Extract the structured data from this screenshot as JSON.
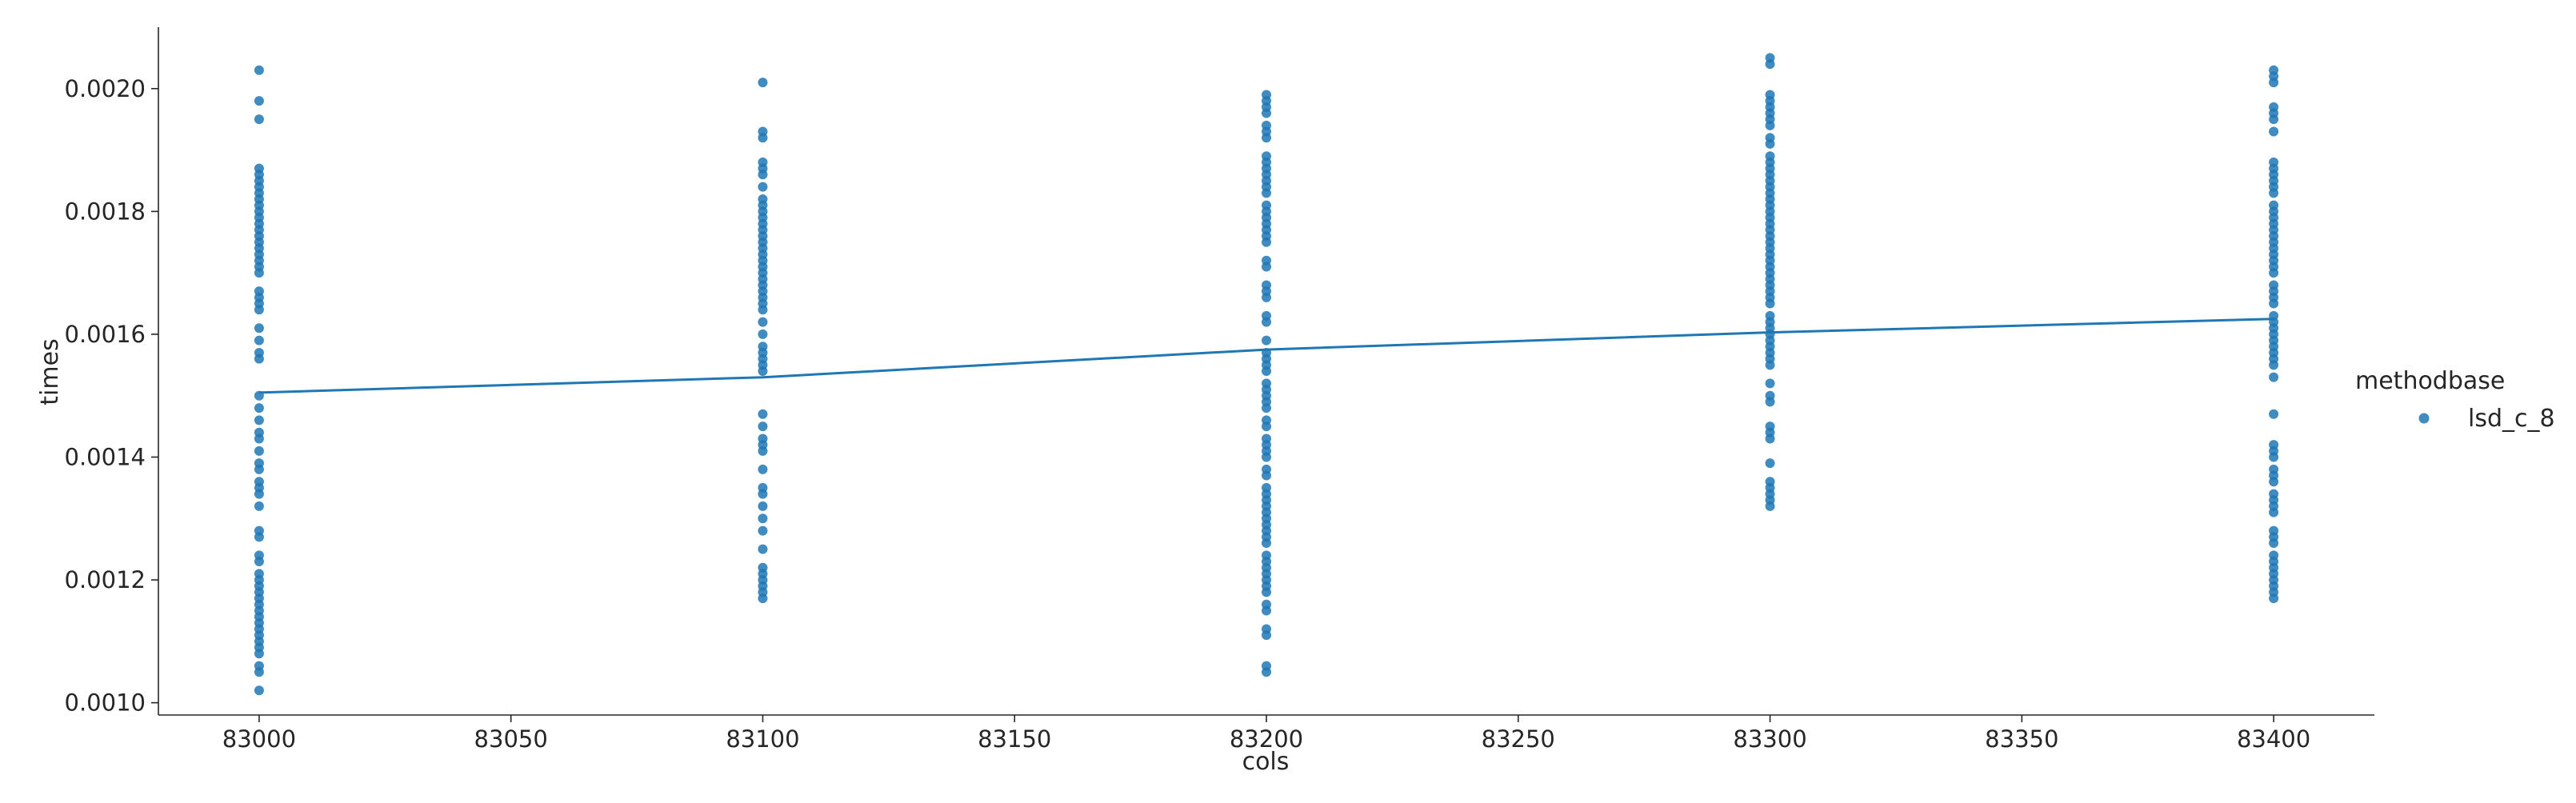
{
  "chart_data": {
    "type": "scatter",
    "xlabel": "cols",
    "ylabel": "times",
    "xlim": [
      82980,
      83420
    ],
    "ylim": [
      0.00098,
      0.0021
    ],
    "x_ticks": [
      83000,
      83050,
      83100,
      83150,
      83200,
      83250,
      83300,
      83350,
      83400
    ],
    "y_ticks": [
      0.001,
      0.0012,
      0.0014,
      0.0016,
      0.0018,
      0.002
    ],
    "x_tick_labels": [
      "83000",
      "83050",
      "83100",
      "83150",
      "83200",
      "83250",
      "83300",
      "83350",
      "83400"
    ],
    "y_tick_labels": [
      "0.0010",
      "0.0012",
      "0.0014",
      "0.0016",
      "0.0018",
      "0.0020"
    ],
    "grid": false,
    "legend": {
      "title": "methodbase",
      "placement": "right",
      "entries": [
        {
          "label": "lsd_c_8",
          "color": "#1f77b4"
        }
      ]
    },
    "series": [
      {
        "name": "lsd_c_8",
        "color": "#1f77b4",
        "points_by_x": [
          {
            "x": 83000,
            "y": [
              0.00203,
              0.00198,
              0.00195,
              0.00187,
              0.00186,
              0.00185,
              0.00184,
              0.00183,
              0.00182,
              0.00181,
              0.0018,
              0.00179,
              0.00178,
              0.00177,
              0.00176,
              0.00175,
              0.00174,
              0.00173,
              0.00172,
              0.00171,
              0.0017,
              0.00167,
              0.00166,
              0.00165,
              0.00164,
              0.00161,
              0.00159,
              0.00157,
              0.00156,
              0.0015,
              0.00148,
              0.00146,
              0.00144,
              0.00143,
              0.00141,
              0.00139,
              0.00138,
              0.00136,
              0.00135,
              0.00134,
              0.00132,
              0.00128,
              0.00127,
              0.00124,
              0.00123,
              0.00121,
              0.0012,
              0.00119,
              0.00118,
              0.00117,
              0.00116,
              0.00115,
              0.00114,
              0.00113,
              0.00112,
              0.00111,
              0.0011,
              0.00109,
              0.00108,
              0.00106,
              0.00105,
              0.00102
            ]
          },
          {
            "x": 83100,
            "y": [
              0.00201,
              0.00193,
              0.00192,
              0.00188,
              0.00187,
              0.00186,
              0.00184,
              0.00182,
              0.00181,
              0.0018,
              0.00179,
              0.00178,
              0.00177,
              0.00176,
              0.00175,
              0.00174,
              0.00173,
              0.00172,
              0.00171,
              0.0017,
              0.00169,
              0.00168,
              0.00167,
              0.00166,
              0.00165,
              0.00164,
              0.00162,
              0.0016,
              0.00158,
              0.00157,
              0.00156,
              0.00155,
              0.00154,
              0.00147,
              0.00145,
              0.00143,
              0.00142,
              0.00141,
              0.00138,
              0.00135,
              0.00134,
              0.00132,
              0.0013,
              0.00128,
              0.00125,
              0.00122,
              0.00121,
              0.0012,
              0.00119,
              0.00118,
              0.00117
            ]
          },
          {
            "x": 83200,
            "y": [
              0.00199,
              0.00198,
              0.00197,
              0.00196,
              0.00194,
              0.00193,
              0.00192,
              0.00189,
              0.00188,
              0.00187,
              0.00186,
              0.00185,
              0.00184,
              0.00183,
              0.00181,
              0.0018,
              0.00179,
              0.00178,
              0.00177,
              0.00176,
              0.00175,
              0.00172,
              0.00171,
              0.00168,
              0.00167,
              0.00166,
              0.00163,
              0.00162,
              0.00159,
              0.00157,
              0.00156,
              0.00155,
              0.00154,
              0.00152,
              0.00151,
              0.0015,
              0.00149,
              0.00148,
              0.00146,
              0.00145,
              0.00143,
              0.00142,
              0.00141,
              0.0014,
              0.00138,
              0.00137,
              0.00135,
              0.00134,
              0.00133,
              0.00132,
              0.00131,
              0.0013,
              0.00129,
              0.00128,
              0.00127,
              0.00126,
              0.00124,
              0.00123,
              0.00122,
              0.00121,
              0.0012,
              0.00119,
              0.00118,
              0.00116,
              0.00115,
              0.00112,
              0.00111,
              0.00106,
              0.00105
            ]
          },
          {
            "x": 83300,
            "y": [
              0.00205,
              0.00204,
              0.00199,
              0.00198,
              0.00197,
              0.00196,
              0.00195,
              0.00194,
              0.00192,
              0.00191,
              0.00189,
              0.00188,
              0.00187,
              0.00186,
              0.00185,
              0.00184,
              0.00183,
              0.00182,
              0.00181,
              0.0018,
              0.00179,
              0.00178,
              0.00177,
              0.00176,
              0.00175,
              0.00174,
              0.00173,
              0.00172,
              0.00171,
              0.0017,
              0.00169,
              0.00168,
              0.00167,
              0.00166,
              0.00165,
              0.00163,
              0.00162,
              0.00161,
              0.0016,
              0.00159,
              0.00158,
              0.00157,
              0.00156,
              0.00155,
              0.00152,
              0.0015,
              0.00149,
              0.00145,
              0.00144,
              0.00143,
              0.00139,
              0.00136,
              0.00135,
              0.00134,
              0.00133,
              0.00132
            ]
          },
          {
            "x": 83400,
            "y": [
              0.00203,
              0.00202,
              0.00201,
              0.00197,
              0.00196,
              0.00195,
              0.00193,
              0.00188,
              0.00187,
              0.00186,
              0.00185,
              0.00184,
              0.00183,
              0.00181,
              0.0018,
              0.00179,
              0.00178,
              0.00177,
              0.00176,
              0.00175,
              0.00174,
              0.00173,
              0.00172,
              0.00171,
              0.0017,
              0.00168,
              0.00167,
              0.00166,
              0.00165,
              0.00163,
              0.00162,
              0.00161,
              0.0016,
              0.00159,
              0.00158,
              0.00157,
              0.00156,
              0.00155,
              0.00153,
              0.00147,
              0.00142,
              0.00141,
              0.0014,
              0.00138,
              0.00137,
              0.00136,
              0.00134,
              0.00133,
              0.00132,
              0.00131,
              0.00128,
              0.00127,
              0.00126,
              0.00124,
              0.00123,
              0.00122,
              0.00121,
              0.0012,
              0.00119,
              0.00118,
              0.00117
            ]
          }
        ]
      }
    ],
    "line": {
      "series": "lsd_c_8",
      "color": "#1f77b4",
      "points": [
        {
          "x": 83000,
          "y": 0.001505
        },
        {
          "x": 83100,
          "y": 0.00153
        },
        {
          "x": 83200,
          "y": 0.001575
        },
        {
          "x": 83300,
          "y": 0.001603
        },
        {
          "x": 83400,
          "y": 0.001625
        }
      ]
    }
  }
}
